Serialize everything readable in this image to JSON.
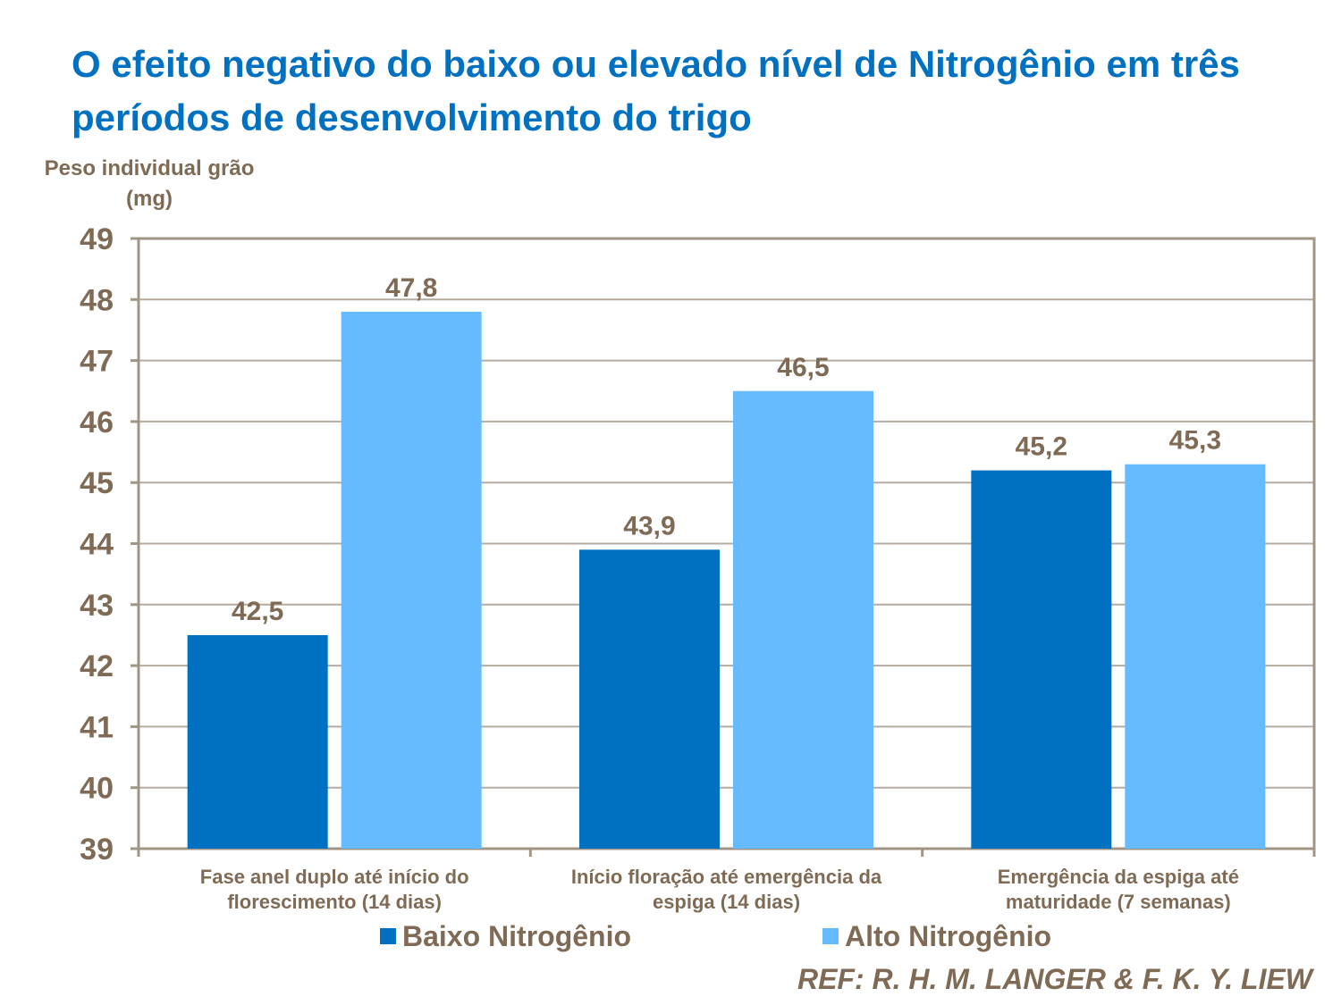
{
  "chart_data": {
    "type": "bar",
    "title": "O efeito negativo do baixo ou elevado nível de Nitrogênio em três períodos de desenvolvimento do trigo",
    "xlabel": "",
    "ylabel": "Peso individual grão (mg)",
    "ylim": [
      39,
      49
    ],
    "yticks": [
      39,
      40,
      41,
      42,
      43,
      44,
      45,
      46,
      47,
      48,
      49
    ],
    "grid": true,
    "legend_position": "bottom",
    "categories": [
      [
        "Fase anel duplo até início do",
        "florescimento (14 dias)"
      ],
      [
        "Início floração até emergência da",
        "espiga (14 dias)"
      ],
      [
        "Emergência da espiga até",
        "maturidade (7 semanas)"
      ]
    ],
    "series": [
      {
        "name": "Baixo Nitrogênio",
        "color": "#0070c0",
        "values": [
          42.5,
          43.9,
          45.2
        ],
        "labels": [
          "42,5",
          "43,9",
          "45,2"
        ]
      },
      {
        "name": "Alto Nitrogênio",
        "color": "#66bbff",
        "values": [
          47.8,
          46.5,
          45.3
        ],
        "labels": [
          "47,8",
          "46,5",
          "45,3"
        ]
      }
    ],
    "reference": "REF: R. H. M. LANGER & F. K. Y. LIEW"
  }
}
